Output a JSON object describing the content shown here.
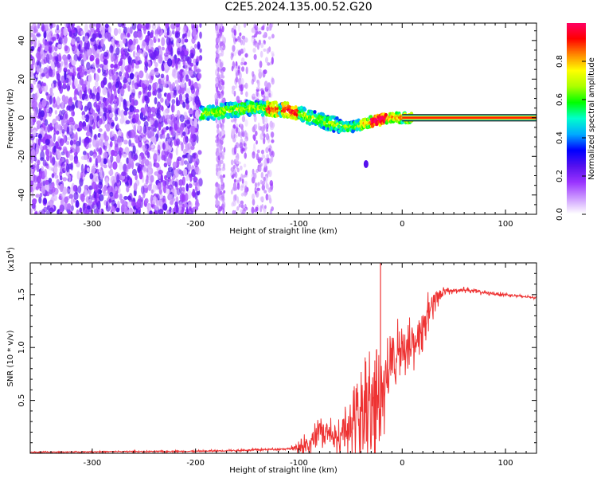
{
  "title": "C2E5.2024.135.00.52.G20",
  "chart_data": [
    {
      "type": "heatmap",
      "xlabel": "Height of straight line (km)",
      "ylabel": "Frequency (Hz)",
      "xlim": [
        -360,
        130
      ],
      "ylim": [
        -50,
        49
      ],
      "x_ticks": [
        -300,
        -200,
        -100,
        0,
        100
      ],
      "y_ticks": [
        -40,
        -20,
        0,
        20,
        40
      ],
      "colorbar": {
        "label": "Normalized spectral amplitude",
        "range": [
          0,
          1
        ],
        "ticks": [
          "0.0",
          "0.2",
          "0.4",
          "0.6",
          "0.8"
        ],
        "colors": [
          "#ffffff",
          "#cc99ff",
          "#9933ff",
          "#5511ee",
          "#0000ff",
          "#00aaff",
          "#00ffcc",
          "#00ff00",
          "#aaff00",
          "#ffff00",
          "#ff8800",
          "#ff0000",
          "#ff0066"
        ]
      },
      "features": [
        {
          "desc": "broadband noise",
          "x_range": [
            -360,
            -195
          ],
          "freq_range": [
            -50,
            49
          ]
        },
        {
          "desc": "sparse noise columns",
          "x_range": [
            -195,
            -120
          ],
          "freq_range": [
            -50,
            49
          ]
        },
        {
          "desc": "carrier trace",
          "x_range": [
            -195,
            10
          ],
          "center_freq": [
            [
              -195,
              2
            ],
            [
              -150,
              5
            ],
            [
              -110,
              4
            ],
            [
              -70,
              -3
            ],
            [
              -50,
              -5
            ],
            [
              -30,
              -2
            ],
            [
              -10,
              0
            ],
            [
              10,
              0
            ]
          ]
        },
        {
          "desc": "clean carrier",
          "x_range": [
            0,
            130
          ],
          "center_freq": 0
        },
        {
          "desc": "isolated blob",
          "x": -35,
          "freq": -24
        }
      ]
    },
    {
      "type": "line",
      "xlabel": "Height of straight line (km)",
      "ylabel": "SNR (10 * v/v)",
      "y_multiplier": "(x10",
      "y_multiplier_exp": "4",
      "y_multiplier_close": ")",
      "xlim": [
        -360,
        130
      ],
      "ylim": [
        0,
        1.8
      ],
      "x_ticks": [
        -300,
        -200,
        -100,
        0,
        100
      ],
      "y_ticks": [
        0.5,
        1.0,
        1.5
      ],
      "y_tick_labels": [
        "0.5",
        "1.0",
        "1.5"
      ],
      "series_color": "#ee3333",
      "profile": [
        [
          -360,
          0.01
        ],
        [
          -300,
          0.015
        ],
        [
          -200,
          0.02
        ],
        [
          -150,
          0.03
        ],
        [
          -120,
          0.04
        ],
        [
          -100,
          0.05
        ],
        [
          -90,
          0.12
        ],
        [
          -80,
          0.25
        ],
        [
          -70,
          0.22
        ],
        [
          -60,
          0.18
        ],
        [
          -50,
          0.3
        ],
        [
          -40,
          0.5
        ],
        [
          -30,
          0.6
        ],
        [
          -22,
          0.55
        ],
        [
          -15,
          0.8
        ],
        [
          -10,
          0.95
        ],
        [
          0,
          0.98
        ],
        [
          10,
          1.05
        ],
        [
          20,
          1.25
        ],
        [
          30,
          1.45
        ],
        [
          40,
          1.53
        ],
        [
          60,
          1.55
        ],
        [
          80,
          1.52
        ],
        [
          100,
          1.5
        ],
        [
          130,
          1.47
        ]
      ],
      "noise_amplitude": [
        [
          -360,
          0.01
        ],
        [
          -110,
          0.02
        ],
        [
          -95,
          0.15
        ],
        [
          -60,
          0.25
        ],
        [
          -40,
          0.6
        ],
        [
          -20,
          0.8
        ],
        [
          0,
          0.45
        ],
        [
          25,
          0.3
        ],
        [
          45,
          0.05
        ],
        [
          130,
          0.02
        ]
      ],
      "spikes": [
        {
          "x": -21,
          "y": 1.8
        }
      ]
    }
  ]
}
